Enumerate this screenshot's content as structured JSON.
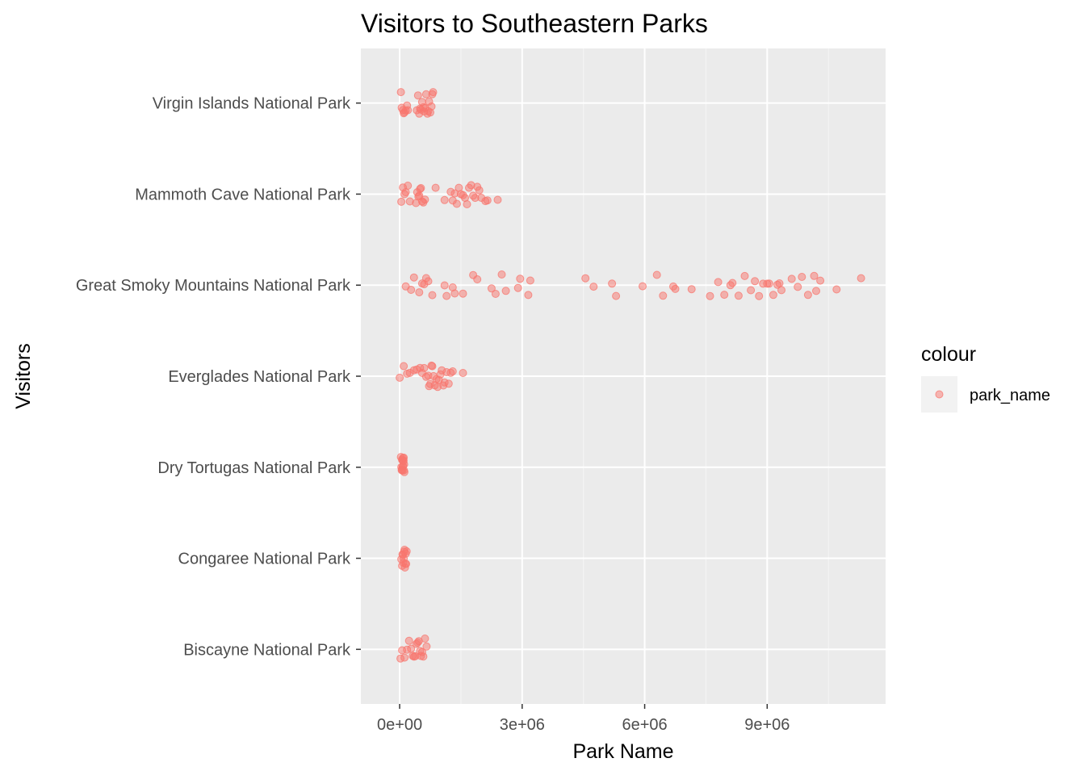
{
  "chart_data": {
    "type": "scatter",
    "title": "Visitors to Southeastern Parks",
    "xlabel": "Park Name",
    "ylabel": "Visitors",
    "xlim": [
      -950000,
      11900000
    ],
    "x_ticks": [
      {
        "value": 0,
        "label": "0e+00"
      },
      {
        "value": 3000000,
        "label": "3e+06"
      },
      {
        "value": 6000000,
        "label": "6e+06"
      },
      {
        "value": 9000000,
        "label": "9e+06"
      }
    ],
    "categories": [
      "Virgin Islands National Park",
      "Mammoth Cave National Park",
      "Great Smoky Mountains National Park",
      "Everglades National Park",
      "Dry Tortugas National Park",
      "Congaree National Park",
      "Biscayne National Park"
    ],
    "point_color": "#F8766D",
    "point_alpha": 0.5,
    "panel_background": "#EBEBEB",
    "grid_color": "#FFFFFF",
    "grid": true,
    "jitter": "vertical",
    "legend": {
      "title": "colour",
      "position": "right",
      "items": [
        {
          "label": "park_name",
          "color": "#F8766D"
        }
      ]
    },
    "series": [
      {
        "category": "Virgin Islands National Park",
        "x": [
          30000,
          50000,
          80000,
          100000,
          120000,
          150000,
          180000,
          200000,
          420000,
          450000,
          480000,
          500000,
          520000,
          550000,
          580000,
          600000,
          620000,
          650000,
          680000,
          700000,
          720000,
          750000,
          780000,
          800000,
          820000
        ]
      },
      {
        "category": "Mammoth Cave National Park",
        "x": [
          40000,
          80000,
          120000,
          150000,
          200000,
          250000,
          400000,
          430000,
          460000,
          480000,
          500000,
          520000,
          550000,
          580000,
          620000,
          880000,
          1100000,
          1250000,
          1300000,
          1350000,
          1400000,
          1450000,
          1500000,
          1550000,
          1600000,
          1650000,
          1700000,
          1750000,
          1800000,
          1850000,
          1900000,
          1950000,
          2000000,
          2100000,
          2150000,
          2400000
        ]
      },
      {
        "category": "Great Smoky Mountains National Park",
        "x": [
          150000,
          280000,
          350000,
          480000,
          550000,
          600000,
          650000,
          700000,
          800000,
          1100000,
          1150000,
          1300000,
          1350000,
          1550000,
          1800000,
          1900000,
          2250000,
          2350000,
          2500000,
          2600000,
          2900000,
          2950000,
          3150000,
          3200000,
          4550000,
          4750000,
          5200000,
          5300000,
          5950000,
          6300000,
          6450000,
          6700000,
          6750000,
          7150000,
          7600000,
          7800000,
          7950000,
          8100000,
          8150000,
          8300000,
          8450000,
          8600000,
          8700000,
          8800000,
          8900000,
          9000000,
          9050000,
          9150000,
          9250000,
          9300000,
          9350000,
          9600000,
          9750000,
          9850000,
          10000000,
          10150000,
          10200000,
          10300000,
          10700000,
          11300000
        ]
      },
      {
        "category": "Everglades National Park",
        "x": [
          0,
          100000,
          180000,
          250000,
          350000,
          420000,
          500000,
          550000,
          600000,
          650000,
          700000,
          720000,
          750000,
          780000,
          800000,
          830000,
          860000,
          900000,
          930000,
          960000,
          1000000,
          1030000,
          1070000,
          1100000,
          1150000,
          1200000,
          1250000,
          1300000,
          1550000
        ]
      },
      {
        "category": "Dry Tortugas National Park",
        "x": [
          30000,
          40000,
          50000,
          55000,
          60000,
          65000,
          70000,
          75000,
          80000,
          85000,
          90000,
          95000,
          100000,
          105000,
          110000,
          115000
        ]
      },
      {
        "category": "Congaree National Park",
        "x": [
          40000,
          60000,
          70000,
          80000,
          90000,
          100000,
          110000,
          120000,
          130000,
          140000,
          150000,
          160000,
          170000
        ]
      },
      {
        "category": "Biscayne National Park",
        "x": [
          20000,
          60000,
          120000,
          180000,
          230000,
          280000,
          320000,
          350000,
          380000,
          410000,
          440000,
          470000,
          500000,
          520000,
          550000,
          580000,
          620000,
          660000
        ]
      }
    ]
  }
}
